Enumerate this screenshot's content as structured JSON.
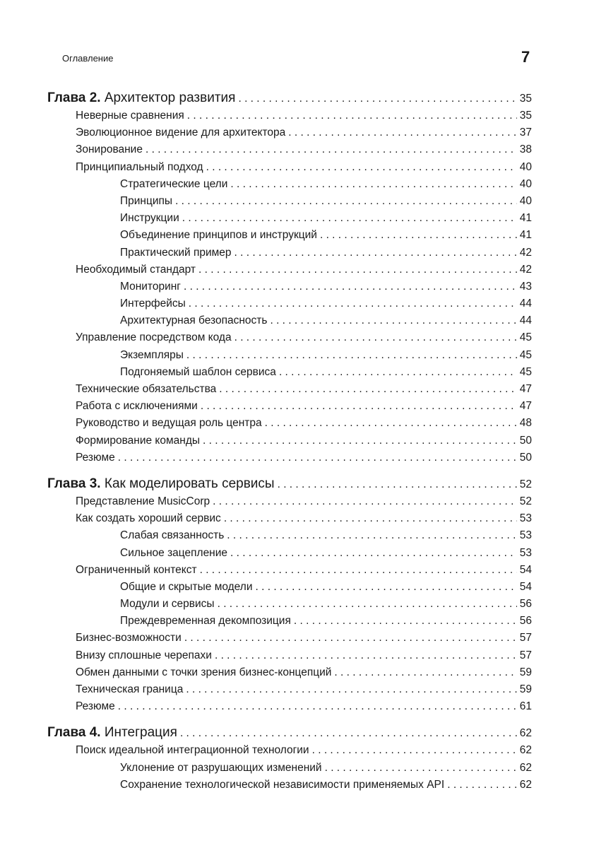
{
  "header": {
    "title": "Оглавление",
    "page_number": "7"
  },
  "toc": [
    {
      "level": 0,
      "prefix": "Глава 2.",
      "title": "Архитектор развития",
      "page": "35"
    },
    {
      "level": 1,
      "title": "Неверные сравнения",
      "page": "35"
    },
    {
      "level": 1,
      "title": "Эволюционное видение для архитектора",
      "page": "37"
    },
    {
      "level": 1,
      "title": "Зонирование",
      "page": "38"
    },
    {
      "level": 1,
      "title": "Принципиальный подход",
      "page": "40"
    },
    {
      "level": 2,
      "title": "Стратегические цели",
      "page": "40"
    },
    {
      "level": 2,
      "title": "Принципы",
      "page": "40"
    },
    {
      "level": 2,
      "title": "Инструкции",
      "page": "41"
    },
    {
      "level": 2,
      "title": "Объединение принципов и инструкций",
      "page": "41"
    },
    {
      "level": 2,
      "title": "Практический пример",
      "page": "42"
    },
    {
      "level": 1,
      "title": "Необходимый стандарт",
      "page": "42"
    },
    {
      "level": 2,
      "title": "Мониторинг",
      "page": "43"
    },
    {
      "level": 2,
      "title": "Интерфейсы",
      "page": "44"
    },
    {
      "level": 2,
      "title": "Архитектурная безопасность",
      "page": "44"
    },
    {
      "level": 1,
      "title": "Управление посредством кода",
      "page": "45"
    },
    {
      "level": 2,
      "title": "Экземпляры",
      "page": "45"
    },
    {
      "level": 2,
      "title": "Подгоняемый шаблон сервиса",
      "page": "45"
    },
    {
      "level": 1,
      "title": "Технические обязательства",
      "page": "47"
    },
    {
      "level": 1,
      "title": "Работа с исключениями",
      "page": "47"
    },
    {
      "level": 1,
      "title": "Руководство и ведущая роль центра",
      "page": "48"
    },
    {
      "level": 1,
      "title": "Формирование команды",
      "page": "50"
    },
    {
      "level": 1,
      "title": "Резюме",
      "page": "50"
    },
    {
      "level": 0,
      "prefix": "Глава 3.",
      "title": "Как моделировать сервисы",
      "page": "52"
    },
    {
      "level": 1,
      "title": "Представление MusicCorp",
      "page": "52"
    },
    {
      "level": 1,
      "title": "Как создать хороший сервис",
      "page": "53"
    },
    {
      "level": 2,
      "title": "Слабая связанность",
      "page": "53"
    },
    {
      "level": 2,
      "title": "Сильное зацепление",
      "page": "53"
    },
    {
      "level": 1,
      "title": "Ограниченный контекст",
      "page": "54"
    },
    {
      "level": 2,
      "title": "Общие и скрытые модели",
      "page": "54"
    },
    {
      "level": 2,
      "title": "Модули и сервисы",
      "page": "56"
    },
    {
      "level": 2,
      "title": "Преждевременная декомпозиция",
      "page": "56"
    },
    {
      "level": 1,
      "title": "Бизнес-возможности",
      "page": "57"
    },
    {
      "level": 1,
      "title": "Внизу сплошные черепахи",
      "page": "57"
    },
    {
      "level": 1,
      "title": "Обмен данными с точки зрения бизнес-концепций",
      "page": "59"
    },
    {
      "level": 1,
      "title": "Техническая граница",
      "page": "59"
    },
    {
      "level": 1,
      "title": "Резюме",
      "page": "61"
    },
    {
      "level": 0,
      "prefix": "Глава 4.",
      "title": "Интеграция",
      "page": "62"
    },
    {
      "level": 1,
      "title": "Поиск идеальной интеграционной технологии",
      "page": "62"
    },
    {
      "level": 2,
      "title": "Уклонение от разрушающих изменений",
      "page": "62"
    },
    {
      "level": 2,
      "title": "Сохранение технологической независимости применяемых API",
      "page": "62"
    }
  ]
}
